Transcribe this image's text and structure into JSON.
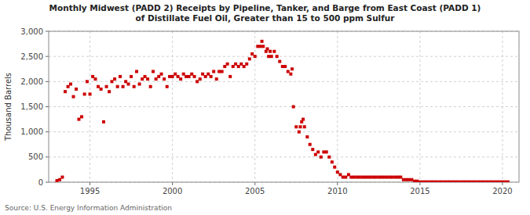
{
  "chart_data": {
    "type": "scatter",
    "title": "Monthly Midwest (PADD 2) Receipts by Pipeline, Tanker, and Barge from East Coast (PADD 1)\nof Distillate Fuel Oil, Greater than 15 to 500 ppm Sulfur",
    "ylabel": "Thousand Barrels",
    "source": "Source: U.S. Energy Information Administration",
    "color": "#cc0000",
    "marker": "square",
    "grid": true,
    "xlim": [
      1992.5,
      2021
    ],
    "ylim": [
      0,
      3000
    ],
    "xticks": [
      1995,
      2000,
      2005,
      2010,
      2015,
      2020
    ],
    "yticks": [
      0,
      500,
      {
        "value": 1000,
        "label": "1,000"
      },
      {
        "value": 1500,
        "label": "1,500"
      },
      {
        "value": 2000,
        "label": "2,000"
      },
      {
        "value": 2500,
        "label": "2,500"
      },
      {
        "value": 3000,
        "label": "3,000"
      }
    ],
    "x": [
      1993.0,
      1993.17,
      1993.33,
      1993.5,
      1993.67,
      1993.83,
      1994.0,
      1994.17,
      1994.33,
      1994.5,
      1994.67,
      1994.83,
      1995.0,
      1995.17,
      1995.33,
      1995.5,
      1995.67,
      1995.83,
      1996.0,
      1996.17,
      1996.33,
      1996.5,
      1996.67,
      1996.83,
      1997.0,
      1997.17,
      1997.33,
      1997.5,
      1997.67,
      1997.83,
      1998.0,
      1998.17,
      1998.33,
      1998.5,
      1998.67,
      1998.83,
      1999.0,
      1999.17,
      1999.33,
      1999.5,
      1999.67,
      1999.83,
      2000.0,
      2000.17,
      2000.33,
      2000.5,
      2000.67,
      2000.83,
      2001.0,
      2001.17,
      2001.33,
      2001.5,
      2001.67,
      2001.83,
      2002.0,
      2002.17,
      2002.33,
      2002.5,
      2002.67,
      2002.83,
      2003.0,
      2003.17,
      2003.33,
      2003.5,
      2003.67,
      2003.83,
      2004.0,
      2004.17,
      2004.33,
      2004.5,
      2004.67,
      2004.83,
      2005.0,
      2005.17,
      2005.33,
      2005.42,
      2005.5,
      2005.67,
      2005.75,
      2005.83,
      2005.92,
      2006.0,
      2006.17,
      2006.33,
      2006.5,
      2006.67,
      2006.83,
      2007.0,
      2007.17,
      2007.25,
      2007.33,
      2007.5,
      2007.67,
      2007.75,
      2007.83,
      2007.92,
      2008.0,
      2008.17,
      2008.33,
      2008.5,
      2008.67,
      2008.83,
      2009.0,
      2009.17,
      2009.33,
      2009.5,
      2009.67,
      2009.83,
      2010.0,
      2010.17,
      2010.33,
      2010.5,
      2010.67,
      2010.83,
      2011.0,
      2011.17,
      2011.33,
      2011.5,
      2011.67,
      2011.83,
      2012.0,
      2012.17,
      2012.33,
      2012.5,
      2012.67,
      2012.83,
      2013.0,
      2013.17,
      2013.33,
      2013.5,
      2013.67,
      2013.83,
      2014.0,
      2014.17,
      2014.33,
      2014.5,
      2014.67,
      2014.83,
      2015.0,
      2015.17,
      2015.33,
      2015.5,
      2015.67,
      2015.83,
      2016.0,
      2016.17,
      2016.33,
      2016.5,
      2016.67,
      2016.83,
      2017.0,
      2017.17,
      2017.33,
      2017.5,
      2017.67,
      2017.83,
      2018.0,
      2018.17,
      2018.33,
      2018.5,
      2018.67,
      2018.83,
      2019.0,
      2019.17,
      2019.33,
      2019.5,
      2019.67,
      2019.83,
      2020.0,
      2020.17,
      2020.33
    ],
    "values": [
      30,
      50,
      100,
      1800,
      1900,
      1950,
      1700,
      1850,
      1250,
      1300,
      1750,
      2000,
      1750,
      2100,
      2050,
      1900,
      1850,
      1200,
      1900,
      1800,
      2000,
      2050,
      1900,
      2100,
      1900,
      2000,
      1950,
      2100,
      1900,
      2200,
      1950,
      2050,
      2100,
      2050,
      1900,
      2200,
      2050,
      2100,
      2150,
      2050,
      1900,
      2100,
      2100,
      2150,
      2100,
      2050,
      2150,
      2100,
      2100,
      2150,
      2100,
      2000,
      2050,
      2150,
      2100,
      2150,
      2100,
      2200,
      2050,
      2200,
      2200,
      2300,
      2350,
      2100,
      2300,
      2350,
      2300,
      2350,
      2300,
      2350,
      2450,
      2550,
      2500,
      2700,
      2700,
      2800,
      2700,
      2600,
      2650,
      2500,
      2600,
      2500,
      2600,
      2500,
      2400,
      2300,
      2300,
      2200,
      2150,
      2250,
      1500,
      1100,
      1000,
      1100,
      1200,
      1250,
      1100,
      900,
      750,
      650,
      550,
      600,
      500,
      600,
      600,
      500,
      400,
      300,
      200,
      150,
      100,
      100,
      150,
      100,
      100,
      100,
      100,
      100,
      100,
      100,
      100,
      100,
      100,
      100,
      100,
      100,
      100,
      100,
      100,
      100,
      100,
      100,
      50,
      50,
      50,
      50,
      20,
      20,
      5,
      5,
      5,
      5,
      5,
      5,
      5,
      5,
      5,
      5,
      5,
      5,
      5,
      5,
      5,
      5,
      5,
      5,
      5,
      5,
      5,
      5,
      5,
      5,
      5,
      5,
      5,
      5,
      5,
      5,
      5,
      5,
      5
    ]
  }
}
